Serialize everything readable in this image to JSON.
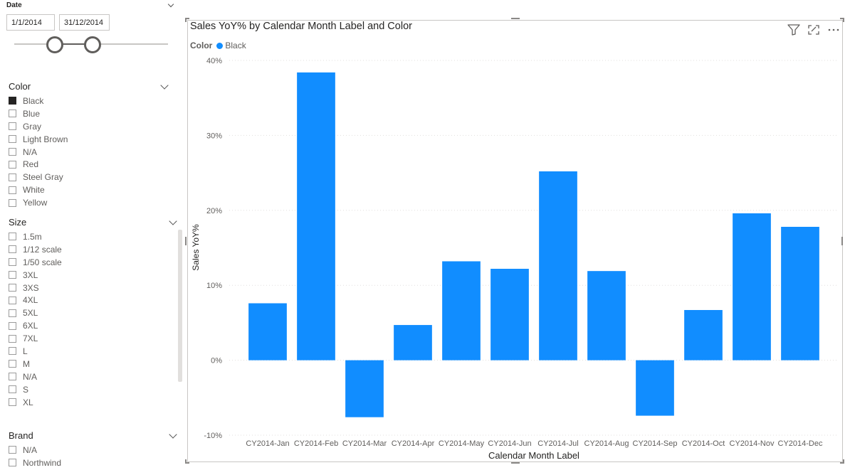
{
  "date_slicer": {
    "title": "Date",
    "start": "1/1/2014",
    "end": "31/12/2014"
  },
  "color_slicer": {
    "title": "Color",
    "items": [
      {
        "label": "Black",
        "checked": true
      },
      {
        "label": "Blue",
        "checked": false
      },
      {
        "label": "Gray",
        "checked": false
      },
      {
        "label": "Light Brown",
        "checked": false
      },
      {
        "label": "N/A",
        "checked": false
      },
      {
        "label": "Red",
        "checked": false
      },
      {
        "label": "Steel Gray",
        "checked": false
      },
      {
        "label": "White",
        "checked": false
      },
      {
        "label": "Yellow",
        "checked": false
      }
    ]
  },
  "size_slicer": {
    "title": "Size",
    "items": [
      {
        "label": "1.5m"
      },
      {
        "label": "1/12 scale"
      },
      {
        "label": "1/50 scale"
      },
      {
        "label": "3XL"
      },
      {
        "label": "3XS"
      },
      {
        "label": "4XL"
      },
      {
        "label": "5XL"
      },
      {
        "label": "6XL"
      },
      {
        "label": "7XL"
      },
      {
        "label": "L"
      },
      {
        "label": "M"
      },
      {
        "label": "N/A"
      },
      {
        "label": "S"
      },
      {
        "label": "XL"
      }
    ]
  },
  "brand_slicer": {
    "title": "Brand",
    "items": [
      {
        "label": "N/A"
      },
      {
        "label": "Northwind"
      }
    ]
  },
  "visual": {
    "icons": [
      "filter-icon",
      "focus-mode-icon",
      "more-options-icon"
    ]
  },
  "chart_data": {
    "type": "bar",
    "title": "Sales YoY% by Calendar Month Label and Color",
    "legend_title": "Color",
    "legend_position": "top-left",
    "xlabel": "Calendar Month Label",
    "ylabel": "Sales YoY%",
    "ylim": [
      -10,
      40
    ],
    "yticks": [
      40,
      30,
      20,
      10,
      0,
      -10
    ],
    "ytick_labels": [
      "40%",
      "30%",
      "20%",
      "10%",
      "0%",
      "-10%"
    ],
    "grid": true,
    "categories": [
      "CY2014-Jan",
      "CY2014-Feb",
      "CY2014-Mar",
      "CY2014-Apr",
      "CY2014-May",
      "CY2014-Jun",
      "CY2014-Jul",
      "CY2014-Aug",
      "CY2014-Sep",
      "CY2014-Oct",
      "CY2014-Nov",
      "CY2014-Dec"
    ],
    "series": [
      {
        "name": "Black",
        "color": "#118dff",
        "values": [
          7.6,
          38.4,
          -7.6,
          4.7,
          13.2,
          12.2,
          25.2,
          11.9,
          -7.4,
          6.7,
          19.6,
          17.8
        ]
      }
    ]
  }
}
